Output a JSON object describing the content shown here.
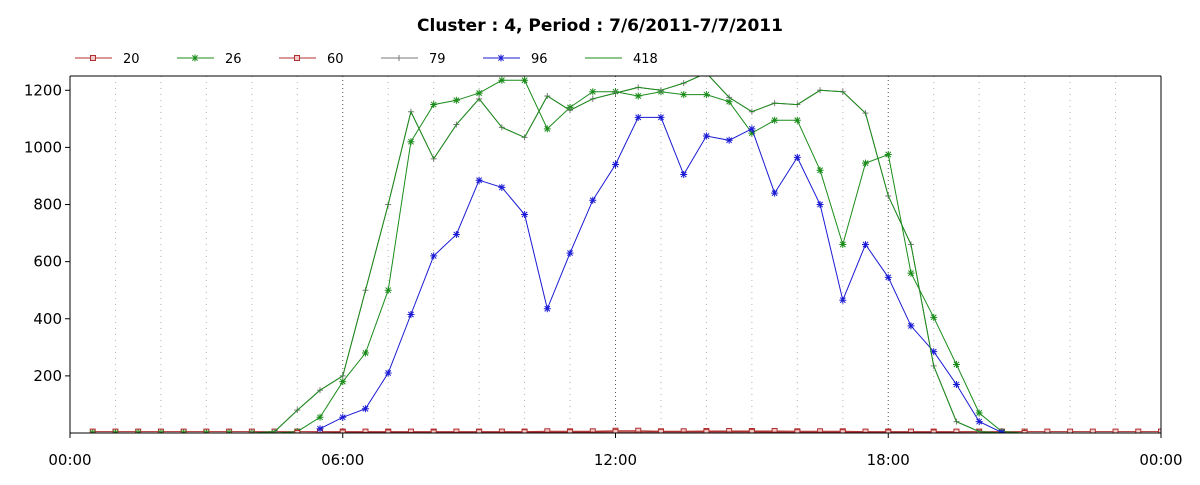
{
  "chart_data": {
    "type": "line",
    "title": "Cluster : 4, Period : 7/6/2011-7/7/2011",
    "xlabel": "",
    "ylabel": "",
    "x_ticks": [
      "00:00",
      "06:00",
      "12:00",
      "18:00",
      "00:00"
    ],
    "y_ticks": [
      200,
      400,
      600,
      800,
      1000,
      1200
    ],
    "xlim": [
      0,
      24
    ],
    "ylim": [
      0,
      1250
    ],
    "grid": true,
    "legend_position": "top-left",
    "series": [
      {
        "name": "20",
        "color": "#b03030",
        "marker": "square",
        "points": [
          [
            0.5,
            5
          ],
          [
            1.0,
            5
          ],
          [
            1.5,
            5
          ],
          [
            2.0,
            5
          ],
          [
            2.5,
            5
          ],
          [
            3.0,
            5
          ],
          [
            3.5,
            5
          ],
          [
            4.0,
            5
          ],
          [
            4.5,
            5
          ],
          [
            5.0,
            5
          ],
          [
            5.5,
            5
          ],
          [
            6.0,
            5
          ],
          [
            6.5,
            5
          ],
          [
            7.0,
            5
          ],
          [
            7.5,
            5
          ],
          [
            8.0,
            5
          ],
          [
            8.5,
            5
          ],
          [
            9.0,
            5
          ],
          [
            9.5,
            5
          ],
          [
            10.0,
            5
          ],
          [
            10.5,
            6
          ],
          [
            11.0,
            6
          ],
          [
            11.5,
            6
          ],
          [
            12.0,
            8
          ],
          [
            12.5,
            8
          ],
          [
            13.0,
            6
          ],
          [
            13.5,
            6
          ],
          [
            14.0,
            7
          ],
          [
            14.5,
            7
          ],
          [
            15.0,
            7
          ],
          [
            15.5,
            7
          ],
          [
            16.0,
            6
          ],
          [
            16.5,
            6
          ],
          [
            17.0,
            6
          ],
          [
            17.5,
            5
          ],
          [
            18.0,
            5
          ],
          [
            18.5,
            5
          ],
          [
            19.0,
            5
          ],
          [
            19.5,
            5
          ],
          [
            20.0,
            5
          ],
          [
            20.5,
            5
          ],
          [
            21.0,
            5
          ],
          [
            21.5,
            5
          ],
          [
            22.0,
            5
          ],
          [
            22.5,
            5
          ],
          [
            23.0,
            5
          ],
          [
            23.5,
            5
          ],
          [
            24.0,
            5
          ]
        ]
      },
      {
        "name": "26",
        "color": "#1a8c1a",
        "marker": "star",
        "points": [
          [
            0.5,
            0
          ],
          [
            1.0,
            0
          ],
          [
            1.5,
            0
          ],
          [
            2.0,
            0
          ],
          [
            2.5,
            0
          ],
          [
            3.0,
            0
          ],
          [
            3.5,
            0
          ],
          [
            4.0,
            0
          ],
          [
            4.5,
            0
          ],
          [
            5.0,
            5
          ],
          [
            5.5,
            55
          ],
          [
            6.0,
            180
          ],
          [
            6.5,
            280
          ],
          [
            7.0,
            500
          ],
          [
            7.5,
            1020
          ],
          [
            8.0,
            1150
          ],
          [
            8.5,
            1165
          ],
          [
            9.0,
            1190
          ],
          [
            9.5,
            1235
          ],
          [
            10.0,
            1235
          ],
          [
            10.5,
            1065
          ],
          [
            11.0,
            1140
          ],
          [
            11.5,
            1195
          ],
          [
            12.0,
            1195
          ],
          [
            12.5,
            1180
          ],
          [
            13.0,
            1195
          ],
          [
            13.5,
            1185
          ],
          [
            14.0,
            1185
          ],
          [
            14.5,
            1160
          ],
          [
            15.0,
            1050
          ],
          [
            15.5,
            1095
          ],
          [
            16.0,
            1095
          ],
          [
            16.5,
            920
          ],
          [
            17.0,
            660
          ],
          [
            17.5,
            945
          ],
          [
            18.0,
            975
          ],
          [
            18.5,
            560
          ],
          [
            19.0,
            405
          ],
          [
            19.5,
            240
          ],
          [
            20.0,
            70
          ],
          [
            20.5,
            5
          ],
          [
            21.0,
            0
          ]
        ]
      },
      {
        "name": "60",
        "color": "#b03030",
        "marker": "square",
        "points": [
          [
            5.0,
            0
          ],
          [
            6.0,
            2
          ],
          [
            7.0,
            2
          ],
          [
            8.0,
            2
          ],
          [
            9.0,
            3
          ],
          [
            10.0,
            3
          ],
          [
            11.0,
            3
          ],
          [
            12.0,
            4
          ],
          [
            13.0,
            4
          ],
          [
            14.0,
            4
          ],
          [
            15.0,
            4
          ],
          [
            16.0,
            3
          ],
          [
            17.0,
            3
          ],
          [
            18.0,
            2
          ],
          [
            19.0,
            2
          ],
          [
            20.0,
            1
          ],
          [
            21.0,
            0
          ]
        ]
      },
      {
        "name": "79",
        "color": "#7a7a7a",
        "marker": "plus",
        "points": [
          [
            4.0,
            0
          ],
          [
            4.5,
            5
          ],
          [
            5.0,
            80
          ],
          [
            5.5,
            150
          ],
          [
            6.0,
            200
          ],
          [
            6.5,
            500
          ],
          [
            7.0,
            800
          ],
          [
            7.5,
            1125
          ],
          [
            8.0,
            960
          ],
          [
            8.5,
            1080
          ],
          [
            9.0,
            1170
          ],
          [
            9.5,
            1070
          ],
          [
            10.0,
            1035
          ],
          [
            10.5,
            1180
          ],
          [
            11.0,
            1130
          ],
          [
            11.5,
            1170
          ],
          [
            12.0,
            1190
          ],
          [
            12.5,
            1210
          ],
          [
            13.0,
            1200
          ],
          [
            13.5,
            1225
          ],
          [
            14.0,
            1260
          ],
          [
            14.5,
            1175
          ],
          [
            15.0,
            1125
          ],
          [
            15.5,
            1155
          ],
          [
            16.0,
            1150
          ],
          [
            16.5,
            1200
          ],
          [
            17.0,
            1195
          ],
          [
            17.5,
            1120
          ],
          [
            18.0,
            830
          ],
          [
            18.5,
            660
          ],
          [
            19.0,
            235
          ],
          [
            19.5,
            40
          ],
          [
            20.0,
            5
          ],
          [
            20.5,
            0
          ]
        ]
      },
      {
        "name": "96",
        "color": "#1a1ad4",
        "marker": "star",
        "points": [
          [
            5.5,
            15
          ],
          [
            6.0,
            55
          ],
          [
            6.5,
            85
          ],
          [
            7.0,
            210
          ],
          [
            7.5,
            415
          ],
          [
            8.0,
            620
          ],
          [
            8.5,
            695
          ],
          [
            9.0,
            885
          ],
          [
            9.5,
            860
          ],
          [
            10.0,
            765
          ],
          [
            10.5,
            435
          ],
          [
            11.0,
            630
          ],
          [
            11.5,
            815
          ],
          [
            12.0,
            940
          ],
          [
            12.5,
            1105
          ],
          [
            13.0,
            1105
          ],
          [
            13.5,
            905
          ],
          [
            14.0,
            1040
          ],
          [
            14.5,
            1025
          ],
          [
            15.0,
            1065
          ],
          [
            15.5,
            840
          ],
          [
            16.0,
            965
          ],
          [
            16.5,
            800
          ],
          [
            17.0,
            465
          ],
          [
            17.5,
            660
          ],
          [
            18.0,
            545
          ],
          [
            18.5,
            375
          ],
          [
            19.0,
            285
          ],
          [
            19.5,
            170
          ],
          [
            20.0,
            40
          ],
          [
            20.5,
            2
          ]
        ]
      },
      {
        "name": "418",
        "color": "#1a8c1a",
        "marker": "none",
        "points": [
          [
            4.0,
            0
          ],
          [
            4.5,
            5
          ],
          [
            5.0,
            80
          ],
          [
            5.5,
            150
          ],
          [
            6.0,
            200
          ],
          [
            6.5,
            500
          ],
          [
            7.0,
            800
          ],
          [
            7.5,
            1125
          ],
          [
            8.0,
            960
          ],
          [
            8.5,
            1080
          ],
          [
            9.0,
            1170
          ],
          [
            9.5,
            1070
          ],
          [
            10.0,
            1035
          ],
          [
            10.5,
            1180
          ],
          [
            11.0,
            1130
          ],
          [
            11.5,
            1170
          ],
          [
            12.0,
            1190
          ],
          [
            12.5,
            1210
          ],
          [
            13.0,
            1200
          ],
          [
            13.5,
            1225
          ],
          [
            14.0,
            1260
          ],
          [
            14.5,
            1175
          ],
          [
            15.0,
            1125
          ],
          [
            15.5,
            1155
          ],
          [
            16.0,
            1150
          ],
          [
            16.5,
            1200
          ],
          [
            17.0,
            1195
          ],
          [
            17.5,
            1120
          ],
          [
            18.0,
            830
          ],
          [
            18.5,
            660
          ],
          [
            19.0,
            235
          ],
          [
            19.5,
            40
          ],
          [
            20.0,
            5
          ],
          [
            20.5,
            0
          ]
        ]
      }
    ]
  }
}
